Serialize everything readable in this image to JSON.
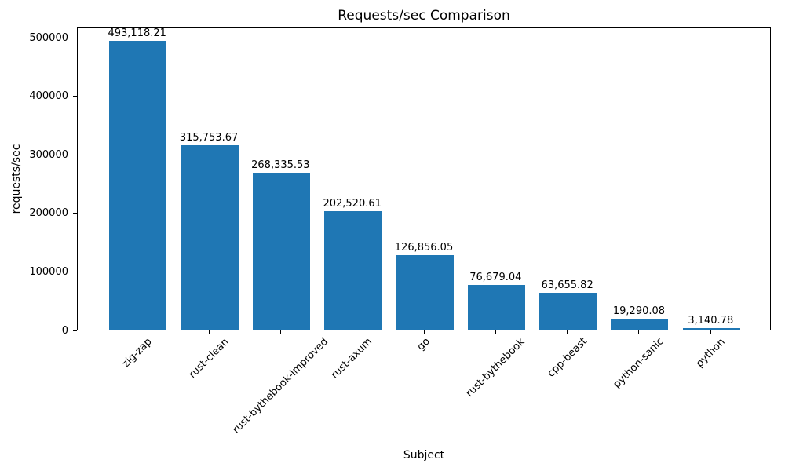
{
  "chart_data": {
    "type": "bar",
    "title": "Requests/sec Comparison",
    "xlabel": "Subject",
    "ylabel": "requests/sec",
    "categories": [
      "zig-zap",
      "rust-clean",
      "rust-bythebook-improved",
      "rust-axum",
      "go",
      "rust-bythebook",
      "cpp-beast",
      "python-sanic",
      "python"
    ],
    "values": [
      493118.21,
      315753.67,
      268335.53,
      202520.61,
      126856.05,
      76679.04,
      63655.82,
      19290.08,
      3140.78
    ],
    "value_labels": [
      "493,118.21",
      "315,753.67",
      "268,335.53",
      "202,520.61",
      "126,856.05",
      "76,679.04",
      "63,655.82",
      "19,290.08",
      "3,140.78"
    ],
    "yticks": [
      0,
      100000,
      200000,
      300000,
      400000,
      500000
    ],
    "ytick_labels": [
      "0",
      "100000",
      "200000",
      "300000",
      "400000",
      "500000"
    ],
    "ylim": [
      0,
      517774
    ],
    "bar_color": "#1f77b4",
    "bar_width_fraction": 0.8,
    "grid": false,
    "legend": null,
    "xtick_rotation": 45
  }
}
